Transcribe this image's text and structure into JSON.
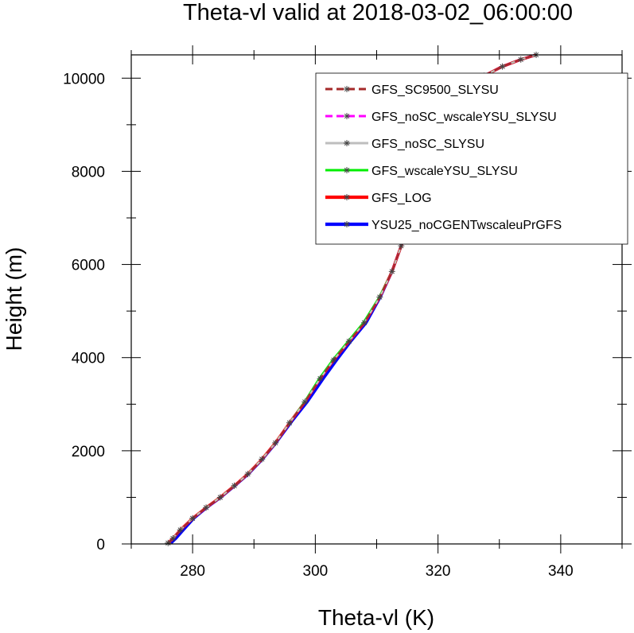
{
  "chart_data": {
    "type": "line",
    "title": "Theta-vl valid at 2018-03-02_06:00:00",
    "xlabel": "Theta-vl (K)",
    "ylabel": "Height (m)",
    "xlim": [
      270,
      350
    ],
    "ylim": [
      0,
      10500
    ],
    "xticks": [
      280,
      300,
      320,
      340
    ],
    "yticks": [
      0,
      2000,
      4000,
      6000,
      8000,
      10000
    ],
    "grid": false,
    "legend_position": "top-right",
    "series": [
      {
        "name": "GFS_SC9500_SLYSU",
        "color": "#a52a2a",
        "style": "dashed",
        "x": [
          276.0,
          276.8,
          278.0,
          280.0,
          282.2,
          284.5,
          286.8,
          289.0,
          291.3,
          293.5,
          295.8,
          298.3,
          300.8,
          303.0,
          305.5,
          308.0,
          310.5,
          312.5,
          314.0,
          315.8,
          317.0,
          317.8,
          318.8,
          321.0,
          324.0,
          327.5,
          330.5,
          333.5,
          336.0
        ],
        "y": [
          20,
          120,
          300,
          550,
          780,
          1000,
          1250,
          1500,
          1820,
          2170,
          2600,
          3050,
          3550,
          3950,
          4350,
          4750,
          5300,
          5850,
          6400,
          7000,
          7600,
          8200,
          8800,
          9300,
          9700,
          10050,
          10250,
          10400,
          10500
        ]
      },
      {
        "name": "GFS_noSC_wscaleYSU_SLYSU",
        "color": "#ff00ff",
        "style": "dashed",
        "x": [
          276.0,
          276.8,
          278.0,
          280.0,
          282.2,
          284.5,
          286.8,
          289.0,
          291.3,
          293.5,
          295.8,
          298.3,
          300.8,
          303.0,
          305.5,
          308.0,
          310.5,
          312.5,
          314.0,
          315.8,
          317.0,
          317.8,
          318.8,
          321.0,
          324.0,
          327.5,
          330.5,
          333.5,
          336.0
        ],
        "y": [
          20,
          120,
          300,
          550,
          780,
          1000,
          1250,
          1500,
          1820,
          2170,
          2600,
          3050,
          3550,
          3950,
          4350,
          4750,
          5300,
          5850,
          6400,
          7000,
          7600,
          8200,
          8800,
          9300,
          9700,
          10050,
          10250,
          10400,
          10500
        ]
      },
      {
        "name": "GFS_noSC_SLYSU",
        "color": "#bebebe",
        "style": "solid",
        "x": [
          276.0,
          276.8,
          278.0,
          280.0,
          282.2,
          284.5,
          286.8,
          289.0,
          291.3,
          293.5,
          295.8,
          298.3,
          300.8,
          303.0,
          305.5,
          308.0,
          310.5,
          312.5,
          314.0,
          315.8,
          317.0,
          317.8,
          318.8,
          321.0,
          324.0,
          327.5,
          330.5,
          333.5,
          336.0
        ],
        "y": [
          20,
          120,
          300,
          550,
          780,
          1000,
          1250,
          1500,
          1820,
          2170,
          2600,
          3050,
          3550,
          3950,
          4350,
          4750,
          5300,
          5850,
          6400,
          7000,
          7600,
          8200,
          8800,
          9300,
          9700,
          10050,
          10250,
          10400,
          10500
        ]
      },
      {
        "name": "GFS_wscaleYSU_SLYSU",
        "color": "#00ee00",
        "style": "solid",
        "x": [
          276.0,
          276.8,
          278.0,
          280.0,
          282.2,
          284.5,
          286.8,
          289.0,
          291.3,
          293.5,
          295.8,
          298.2,
          300.6,
          302.8,
          305.3,
          307.8,
          310.4,
          312.5,
          314.0,
          315.8,
          317.0,
          317.8,
          319.0,
          321.5,
          324.5,
          327.5,
          330.5,
          333.5,
          336.0
        ],
        "y": [
          20,
          120,
          300,
          550,
          780,
          1000,
          1250,
          1500,
          1820,
          2170,
          2600,
          3050,
          3550,
          3950,
          4350,
          4750,
          5300,
          5850,
          6400,
          7000,
          7600,
          8200,
          8800,
          9300,
          9700,
          10050,
          10250,
          10400,
          10500
        ]
      },
      {
        "name": "GFS_LOG",
        "color": "#ff0000",
        "style": "solid-thick",
        "x": [
          276.0,
          276.8,
          278.0,
          280.0,
          282.2,
          284.5,
          286.8,
          289.0,
          291.3,
          293.5,
          295.8,
          298.3,
          300.8,
          303.0,
          305.5,
          308.0,
          310.5,
          312.5,
          314.0,
          315.8,
          317.0,
          317.8,
          318.8,
          321.0,
          324.0,
          327.5,
          330.5,
          333.5,
          336.0
        ],
        "y": [
          20,
          120,
          300,
          550,
          780,
          1000,
          1250,
          1500,
          1820,
          2170,
          2600,
          3050,
          3550,
          3950,
          4350,
          4750,
          5300,
          5850,
          6400,
          7000,
          7600,
          8200,
          8800,
          9300,
          9700,
          10050,
          10250,
          10400,
          10500
        ]
      },
      {
        "name": "YSU25_noCGENTwscaleuPrGFS",
        "color": "#0000ff",
        "style": "solid-thick",
        "x": [
          276.5,
          277.3,
          278.5,
          280.2,
          282.3,
          284.6,
          286.9,
          289.1,
          291.4,
          293.6,
          296.0,
          298.7,
          301.3,
          303.5,
          305.8,
          308.3,
          310.6,
          312.5,
          314.0,
          315.8,
          317.0,
          317.8,
          318.8,
          321.0,
          324.0,
          327.5,
          330.5,
          333.5,
          336.0
        ],
        "y": [
          20,
          120,
          300,
          550,
          780,
          1000,
          1250,
          1500,
          1820,
          2170,
          2600,
          3050,
          3550,
          3950,
          4350,
          4750,
          5300,
          5850,
          6400,
          7000,
          7600,
          8200,
          8800,
          9300,
          9700,
          10050,
          10250,
          10400,
          10500
        ]
      }
    ]
  }
}
